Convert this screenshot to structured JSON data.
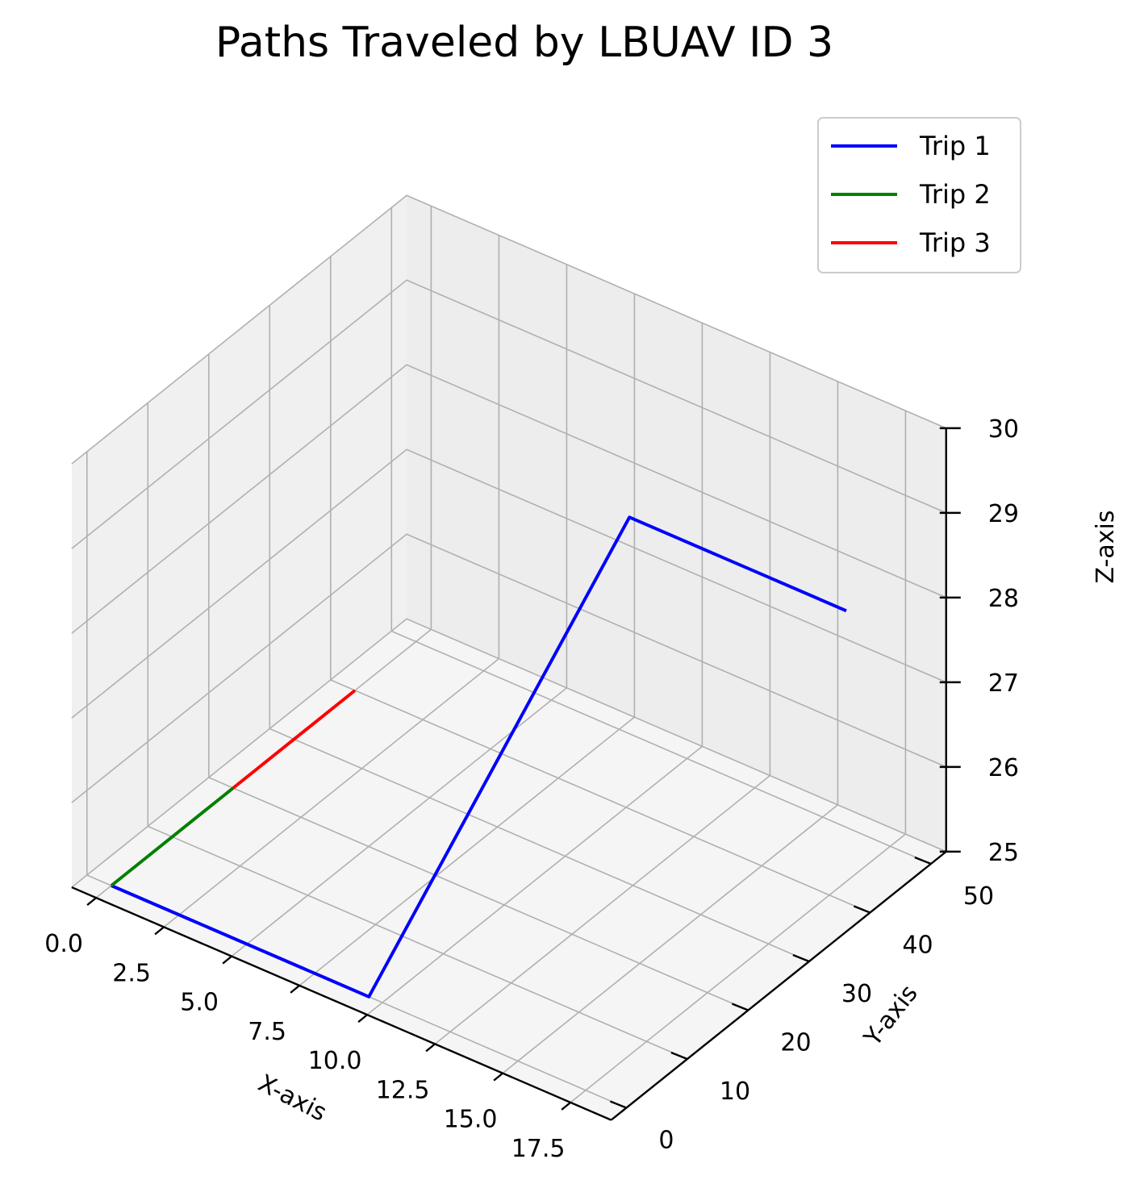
{
  "chart_data": {
    "type": "line",
    "projection": "3d",
    "title": "Paths Traveled by LBUAV ID 3",
    "xlabel": "X-axis",
    "ylabel": "Y-axis",
    "zlabel": "Z-axis",
    "xlim": [
      -0.9,
      19.0
    ],
    "ylim": [
      -2.5,
      52.5
    ],
    "zlim": [
      25,
      30
    ],
    "x_ticks": [
      "0.0",
      "2.5",
      "5.0",
      "7.5",
      "10.0",
      "12.5",
      "15.0",
      "17.5"
    ],
    "y_ticks": [
      "0",
      "10",
      "20",
      "30",
      "40",
      "50"
    ],
    "z_ticks": [
      "25",
      "26",
      "27",
      "28",
      "29",
      "30"
    ],
    "grid": true,
    "legend_position": "top-right",
    "series": [
      {
        "name": "Trip 1",
        "color": "#0000ff",
        "points": [
          {
            "x": 0.0,
            "y": 0.0,
            "z": 25.0
          },
          {
            "x": 1.0,
            "y": 0.0,
            "z": 25.0
          },
          {
            "x": 2.0,
            "y": 0.0,
            "z": 25.0
          },
          {
            "x": 3.0,
            "y": 0.0,
            "z": 25.0
          },
          {
            "x": 4.0,
            "y": 0.0,
            "z": 25.0
          },
          {
            "x": 5.0,
            "y": 0.0,
            "z": 25.0
          },
          {
            "x": 6.0,
            "y": 0.0,
            "z": 25.0
          },
          {
            "x": 7.0,
            "y": 0.0,
            "z": 25.0
          },
          {
            "x": 8.0,
            "y": 0.0,
            "z": 25.0
          },
          {
            "x": 9.5,
            "y": 0.0,
            "z": 25.0
          },
          {
            "x": 9.0,
            "y": 45.0,
            "z": 28.0
          },
          {
            "x": 17.0,
            "y": 45.0,
            "z": 28.0
          }
        ]
      },
      {
        "name": "Trip 2",
        "color": "#008000",
        "points": [
          {
            "x": 0.0,
            "y": 0.0,
            "z": 25.0
          },
          {
            "x": 0.0,
            "y": 20.0,
            "z": 25.0
          }
        ]
      },
      {
        "name": "Trip 3",
        "color": "#ff0000",
        "points": [
          {
            "x": 0.0,
            "y": 20.0,
            "z": 25.0
          },
          {
            "x": 0.0,
            "y": 40.0,
            "z": 25.0
          }
        ]
      }
    ]
  }
}
